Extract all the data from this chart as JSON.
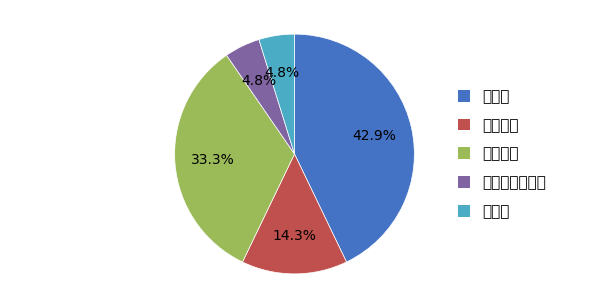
{
  "labels": [
    "大企業",
    "中小企業",
    "教育機関",
    "公的機関・団体",
    "その他"
  ],
  "values": [
    42.9,
    14.3,
    33.3,
    4.8,
    4.8
  ],
  "colors": [
    "#4472C4",
    "#C0504D",
    "#9BBB59",
    "#8064A2",
    "#4BACC6"
  ],
  "pct_labels": [
    "42.9%",
    "14.3%",
    "33.3%",
    "4.8%",
    "4.8%"
  ],
  "startangle": 90,
  "legend_fontsize": 11,
  "pct_fontsize": 10,
  "figsize": [
    5.89,
    3.08
  ],
  "dpi": 100
}
